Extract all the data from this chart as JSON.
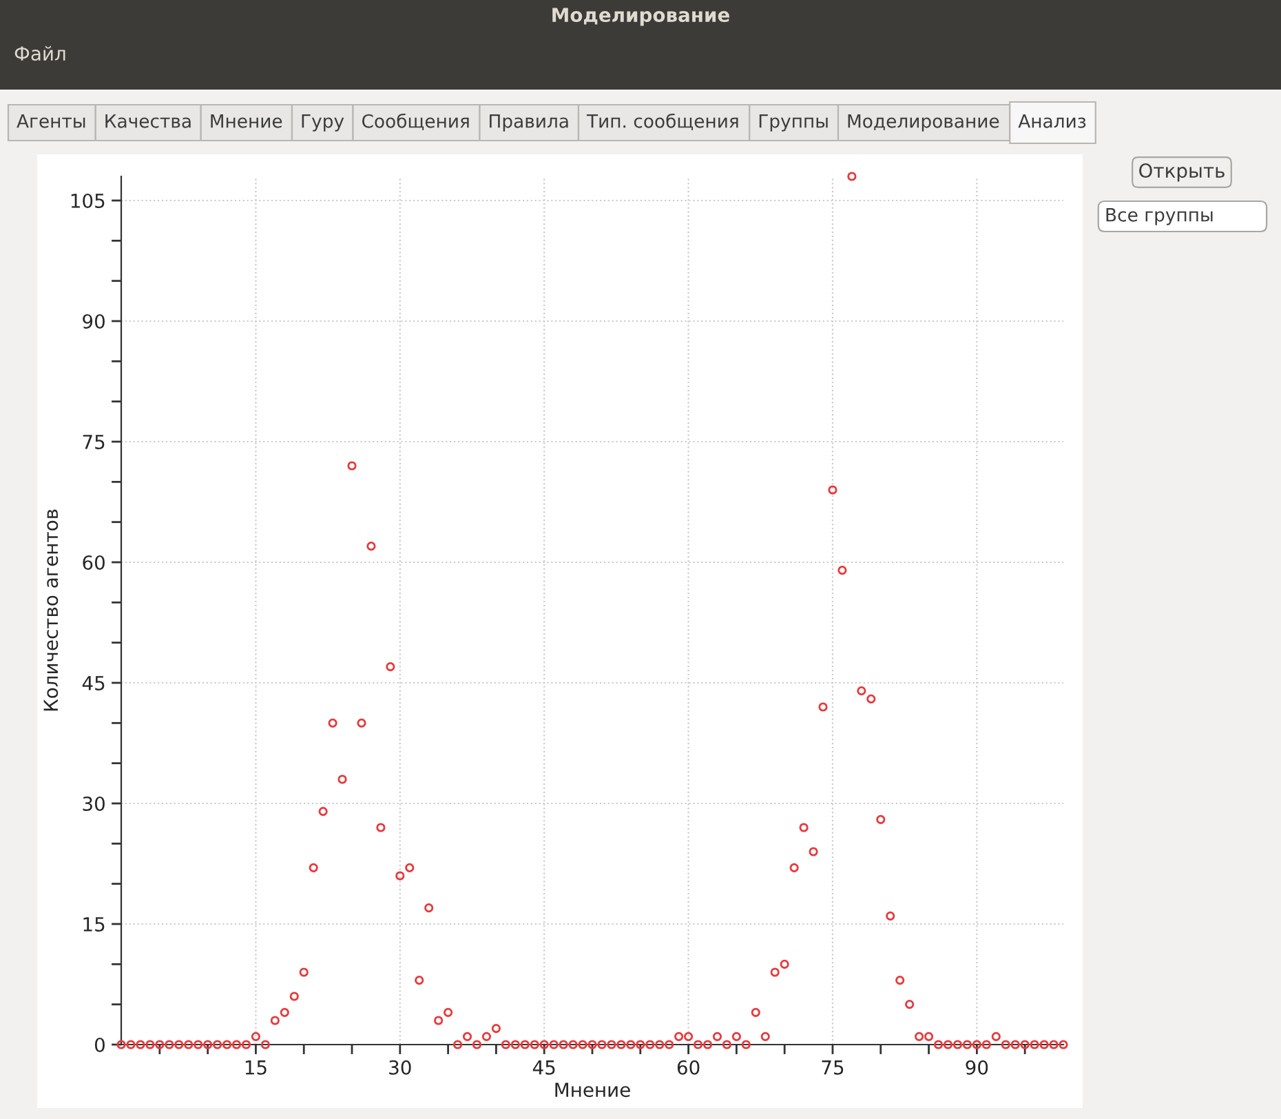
{
  "chart_data": {
    "type": "scatter",
    "title": "Моделирование",
    "xlabel": "Мнение",
    "ylabel": "Количество агентов",
    "annotations": [
      "Файл",
      "Агенты",
      "Качества",
      "Мнение",
      "Гуру",
      "Сообщения",
      "Правила",
      "Тип. сообщения",
      "Группы",
      "Моделирование",
      "Анализ",
      "Открыть",
      "Все группы"
    ],
    "x": [
      1,
      2,
      3,
      4,
      5,
      6,
      7,
      8,
      9,
      10,
      11,
      12,
      13,
      14,
      15,
      16,
      17,
      18,
      19,
      20,
      21,
      22,
      23,
      24,
      25,
      26,
      27,
      28,
      29,
      30,
      31,
      32,
      33,
      34,
      35,
      36,
      37,
      38,
      39,
      40,
      41,
      42,
      43,
      44,
      45,
      46,
      47,
      48,
      49,
      50,
      51,
      52,
      53,
      54,
      55,
      56,
      57,
      58,
      59,
      60,
      61,
      62,
      63,
      64,
      65,
      66,
      67,
      68,
      69,
      70,
      71,
      72,
      73,
      74,
      75,
      76,
      77,
      78,
      79,
      80,
      81,
      82,
      83,
      84,
      85,
      86,
      87,
      88,
      89,
      90,
      91,
      92,
      93,
      94,
      95,
      96,
      97,
      98,
      99
    ],
    "series": [
      {
        "color": "#e8393c",
        "values": [
          0,
          0,
          0,
          0,
          0,
          0,
          0,
          0,
          0,
          0,
          0,
          0,
          0,
          0,
          1,
          0,
          3,
          4,
          6,
          9,
          22,
          29,
          40,
          33,
          72,
          40,
          62,
          27,
          47,
          21,
          22,
          8,
          17,
          3,
          4,
          0,
          1,
          0,
          1,
          2,
          0,
          0,
          0,
          0,
          0,
          0,
          0,
          0,
          0,
          0,
          0,
          0,
          0,
          0,
          0,
          0,
          0,
          0,
          1,
          1,
          0,
          0,
          1,
          0,
          1,
          0,
          4,
          1,
          9,
          10,
          22,
          27,
          24,
          42,
          69,
          59,
          108,
          44,
          43,
          28,
          16,
          8,
          5,
          1,
          1,
          0,
          0,
          0,
          0,
          0,
          0,
          1,
          0,
          0,
          0,
          0,
          0,
          0,
          0
        ]
      }
    ],
    "xlim": [
      1,
      99
    ],
    "ylim": [
      0,
      108
    ],
    "xticks": [
      {
        "value": 5,
        "label": null
      },
      {
        "value": 10,
        "label": null
      },
      15,
      {
        "value": 20,
        "label": null
      },
      {
        "value": 25,
        "label": null
      },
      30,
      {
        "value": 35,
        "label": null
      },
      {
        "value": 40,
        "label": null
      },
      45,
      {
        "value": 50,
        "label": null
      },
      {
        "value": 55,
        "label": null
      },
      60,
      {
        "value": 65,
        "label": null
      },
      {
        "value": 70,
        "label": null
      },
      75,
      {
        "value": 80,
        "label": null
      },
      {
        "value": 85,
        "label": null
      },
      90,
      {
        "value": 95,
        "label": null
      }
    ],
    "yticks": [
      0,
      {
        "value": 5,
        "label": null
      },
      {
        "value": 10,
        "label": null
      },
      15,
      {
        "value": 20,
        "label": null
      },
      {
        "value": 25,
        "label": null
      },
      30,
      {
        "value": 35,
        "label": null
      },
      {
        "value": 40,
        "label": null
      },
      45,
      {
        "value": 50,
        "label": null
      },
      {
        "value": 55,
        "label": null
      },
      60,
      {
        "value": 65,
        "label": null
      },
      {
        "value": 70,
        "label": null
      },
      75,
      {
        "value": 80,
        "label": null
      },
      {
        "value": 85,
        "label": null
      },
      90,
      {
        "value": 95,
        "label": null
      },
      {
        "value": 100,
        "label": null
      },
      105
    ],
    "grid": true,
    "marker": "circle"
  }
}
